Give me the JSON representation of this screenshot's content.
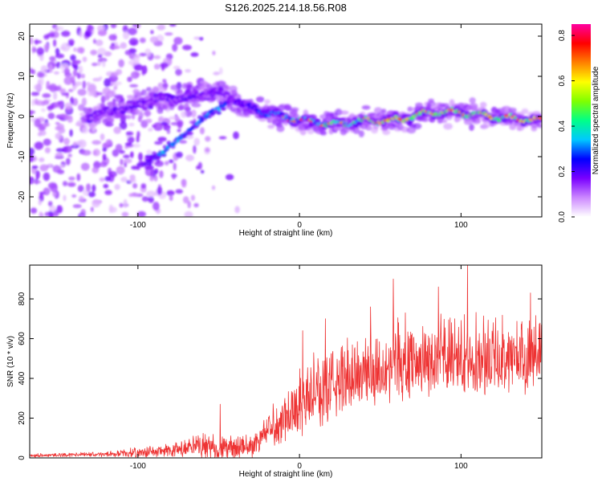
{
  "title": "S126.2025.214.18.56.R08",
  "chart_data": [
    {
      "type": "heatmap",
      "xlabel": "Height of straight line (km)",
      "ylabel": "Frequency (Hz)",
      "xlim": [
        -167,
        150
      ],
      "ylim": [
        -25,
        23
      ],
      "xticks": [
        -100,
        0,
        100
      ],
      "yticks": [
        -20,
        -10,
        0,
        10,
        20
      ],
      "colorbar": {
        "label": "Normalized spectral amplitude",
        "range": [
          0,
          0.85
        ],
        "ticks": [
          "0.0",
          "0.2",
          "0.4",
          "0.6",
          "0.8"
        ],
        "colors": [
          "#ffffff",
          "#cc88ff",
          "#7a00ff",
          "#0000ff",
          "#00c8ff",
          "#00ff88",
          "#80ff00",
          "#ffff00",
          "#ff8000",
          "#ff0000",
          "#ff00a0"
        ]
      },
      "ridge": [
        {
          "x": -130,
          "y": 0
        },
        {
          "x": -110,
          "y": 2
        },
        {
          "x": -90,
          "y": 4
        },
        {
          "x": -70,
          "y": 5
        },
        {
          "x": -50,
          "y": 6
        },
        {
          "x": -40,
          "y": 4
        },
        {
          "x": -30,
          "y": 2
        },
        {
          "x": -20,
          "y": 1
        },
        {
          "x": 0,
          "y": -1
        },
        {
          "x": 20,
          "y": -2
        },
        {
          "x": 40,
          "y": -1
        },
        {
          "x": 60,
          "y": -1
        },
        {
          "x": 80,
          "y": 1
        },
        {
          "x": 100,
          "y": 1
        },
        {
          "x": 120,
          "y": 0
        },
        {
          "x": 150,
          "y": -1
        }
      ],
      "lower_branch": [
        {
          "x": -100,
          "y": -13
        },
        {
          "x": -85,
          "y": -9
        },
        {
          "x": -70,
          "y": -4
        },
        {
          "x": -55,
          "y": 1
        },
        {
          "x": -45,
          "y": 3
        }
      ]
    },
    {
      "type": "line",
      "xlabel": "Height of straight line (km)",
      "ylabel": "SNR (10 * v/v)",
      "xlim": [
        -167,
        150
      ],
      "ylim": [
        0,
        970
      ],
      "xticks": [
        -100,
        0,
        100
      ],
      "yticks": [
        0,
        200,
        400,
        600,
        800
      ],
      "color": "#ee3333",
      "envelope": [
        {
          "x": -167,
          "base": 10,
          "amp": 15
        },
        {
          "x": -120,
          "base": 15,
          "amp": 20
        },
        {
          "x": -80,
          "base": 25,
          "amp": 60
        },
        {
          "x": -60,
          "base": 40,
          "amp": 120
        },
        {
          "x": -45,
          "base": 30,
          "amp": 110
        },
        {
          "x": -30,
          "base": 40,
          "amp": 90
        },
        {
          "x": -20,
          "base": 110,
          "amp": 160
        },
        {
          "x": -5,
          "base": 200,
          "amp": 260
        },
        {
          "x": 10,
          "base": 280,
          "amp": 330
        },
        {
          "x": 30,
          "base": 360,
          "amp": 320
        },
        {
          "x": 60,
          "base": 430,
          "amp": 340
        },
        {
          "x": 90,
          "base": 450,
          "amp": 330
        },
        {
          "x": 120,
          "base": 460,
          "amp": 330
        },
        {
          "x": 150,
          "base": 470,
          "amp": 320
        }
      ],
      "peaks": [
        {
          "x": -49,
          "y": 270
        },
        {
          "x": 2,
          "y": 640
        },
        {
          "x": 16,
          "y": 700
        },
        {
          "x": 44,
          "y": 760
        },
        {
          "x": 58,
          "y": 900
        },
        {
          "x": 86,
          "y": 860
        },
        {
          "x": 104,
          "y": 970
        },
        {
          "x": 143,
          "y": 830
        }
      ]
    }
  ]
}
